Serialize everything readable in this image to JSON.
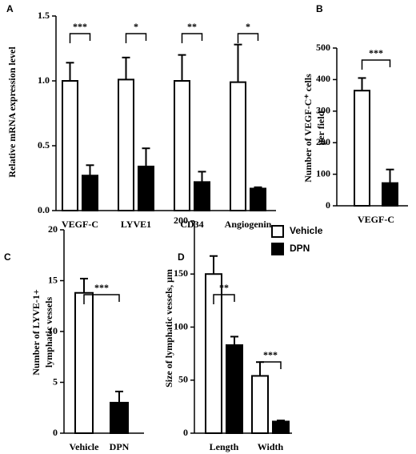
{
  "chart_data": [
    {
      "type": "bar",
      "panel": "A",
      "ylabel": [
        "Relative mRNA expression level"
      ],
      "categories": [
        "VEGF-C",
        "LYVE1",
        "CD34",
        "Angiogenin"
      ],
      "series": [
        {
          "name": "Vehicle",
          "color": "#ffffff",
          "values": [
            1.0,
            1.01,
            1.0,
            0.99
          ],
          "errors": [
            0.14,
            0.17,
            0.2,
            0.29
          ]
        },
        {
          "name": "DPN",
          "color": "#000000",
          "values": [
            0.27,
            0.34,
            0.22,
            0.17
          ],
          "errors": [
            0.08,
            0.14,
            0.08,
            0.01
          ]
        }
      ],
      "significance": [
        "***",
        "*",
        "**",
        "*"
      ],
      "ylim": [
        0,
        1.5
      ],
      "yticks": [
        {
          "value": 0,
          "label": "0.0"
        },
        0.5,
        {
          "value": 1,
          "label": "1.0"
        },
        1.5
      ]
    },
    {
      "type": "bar",
      "panel": "B",
      "ylabel": [
        "Number of VEGF-C⁺ cells",
        "per field"
      ],
      "categories": [
        "VEGF-C"
      ],
      "series": [
        {
          "name": "Vehicle",
          "color": "#ffffff",
          "values": [
            365
          ],
          "errors": [
            40
          ]
        },
        {
          "name": "DPN",
          "color": "#000000",
          "values": [
            72
          ],
          "errors": [
            43
          ]
        }
      ],
      "significance": [
        "***"
      ],
      "ylim": [
        0,
        500
      ],
      "yticks": [
        0,
        100,
        200,
        300,
        400,
        500
      ]
    },
    {
      "type": "bar",
      "panel": "C",
      "ylabel": [
        "Number of LYVE-1+",
        "lymphatic vessels"
      ],
      "categories": [
        "Vehicle",
        "DPN"
      ],
      "values": [
        13.8,
        3.0
      ],
      "errors": [
        1.4,
        1.1
      ],
      "colors": [
        "#ffffff",
        "#000000"
      ],
      "significance": [
        "***"
      ],
      "ylim": [
        0,
        20
      ],
      "yticks": [
        0,
        5,
        10,
        15,
        20
      ]
    },
    {
      "type": "bar",
      "panel": "D",
      "ylabel": [
        "Size of lymphatic vessels, μm"
      ],
      "categories": [
        "Length",
        "Width"
      ],
      "series": [
        {
          "name": "Vehicle",
          "color": "#ffffff",
          "values": [
            150,
            54
          ],
          "errors": [
            17,
            13
          ]
        },
        {
          "name": "DPN",
          "color": "#000000",
          "values": [
            83,
            11
          ],
          "errors": [
            8,
            1
          ]
        }
      ],
      "significance": [
        "**",
        "***"
      ],
      "legend": "upper right",
      "ylim": [
        0,
        200
      ],
      "yticks": [
        0,
        50,
        100,
        150,
        200
      ]
    }
  ]
}
